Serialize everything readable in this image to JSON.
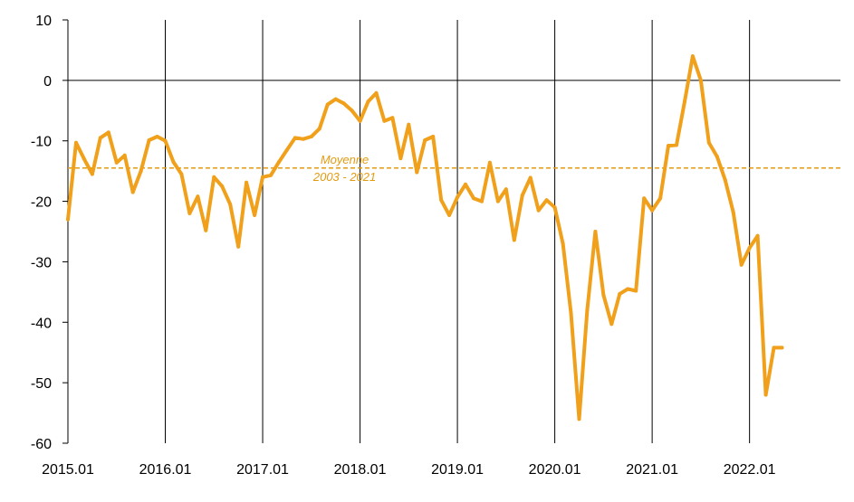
{
  "chart_data": {
    "type": "line",
    "title": "",
    "xlabel": "",
    "ylabel": "",
    "xlim": [
      "2015.01",
      "2022.12"
    ],
    "ylim": [
      -60,
      10
    ],
    "y_ticks": [
      10,
      0,
      -10,
      -20,
      -30,
      -40,
      -50,
      -60
    ],
    "x_tick_labels": [
      "2015.01",
      "2016.01",
      "2017.01",
      "2018.01",
      "2019.01",
      "2020.01",
      "2021.01",
      "2022.01"
    ],
    "grid": "vertical lines at each year",
    "series_color": "#f0a01a",
    "average": {
      "value": -14.5,
      "label_line1": "Moyenne",
      "label_line2": "2003 - 2021",
      "color": "#e39b12",
      "style": "dashed"
    },
    "series": [
      {
        "x": [
          "2015.01",
          "2015.02",
          "2015.03",
          "2015.04",
          "2015.05",
          "2015.06",
          "2015.07",
          "2015.08",
          "2015.09",
          "2015.10",
          "2015.11",
          "2015.12",
          "2016.01",
          "2016.02",
          "2016.03",
          "2016.04",
          "2016.05",
          "2016.06",
          "2016.07",
          "2016.08",
          "2016.09",
          "2016.10",
          "2016.11",
          "2016.12",
          "2017.01",
          "2017.02",
          "2017.03",
          "2017.04",
          "2017.05",
          "2017.06",
          "2017.07",
          "2017.08",
          "2017.09",
          "2017.10",
          "2017.11",
          "2017.12",
          "2018.01",
          "2018.02",
          "2018.03",
          "2018.04",
          "2018.05",
          "2018.06",
          "2018.07",
          "2018.08",
          "2018.09",
          "2018.10",
          "2018.11",
          "2018.12",
          "2019.01",
          "2019.02",
          "2019.03",
          "2019.04",
          "2019.05",
          "2019.06",
          "2019.07",
          "2019.08",
          "2019.09",
          "2019.10",
          "2019.11",
          "2019.12",
          "2020.01",
          "2020.02",
          "2020.03",
          "2020.04",
          "2020.05",
          "2020.06",
          "2020.07",
          "2020.08",
          "2020.09",
          "2020.10",
          "2020.11",
          "2020.12",
          "2021.01",
          "2021.02",
          "2021.03",
          "2021.04",
          "2021.05",
          "2021.06",
          "2021.07",
          "2021.08",
          "2021.09",
          "2021.10",
          "2021.11",
          "2021.12",
          "2022.01",
          "2022.02",
          "2022.03",
          "2022.04",
          "2022.05"
        ],
        "values": [
          -23,
          -10.3,
          -13,
          -15.5,
          -9.5,
          -8.6,
          -13.6,
          -12.4,
          -18.5,
          -15,
          -9.9,
          -9.3,
          -10,
          -13.5,
          -15.5,
          -22,
          -19.2,
          -24.8,
          -16,
          -17.5,
          -20.5,
          -27.5,
          -16.9,
          -22.3,
          -16,
          -15.7,
          -13.5,
          -11.5,
          -9.5,
          -9.7,
          -9.3,
          -8,
          -4,
          -3.1,
          -3.8,
          -5,
          -6.7,
          -3.5,
          -2.1,
          -6.7,
          -6.2,
          -12.9,
          -7.3,
          -15.2,
          -9.9,
          -9.3,
          -19.8,
          -22.3,
          -19.3,
          -17.2,
          -19.5,
          -20,
          -13.6,
          -20,
          -18,
          -26.4,
          -19,
          -16.1,
          -21.5,
          -19.8,
          -21,
          -27,
          -38.5,
          -56,
          -38,
          -25,
          -35.5,
          -40.3,
          -35.3,
          -34.5,
          -34.8,
          -19.5,
          -21.5,
          -19.5,
          -10.8,
          -10.7,
          -3.5,
          4,
          0,
          -10.3,
          -12.6,
          -16.5,
          -21.8,
          -30.5,
          -27.7,
          -25.7,
          -52,
          -44.2,
          -44.2
        ]
      }
    ]
  }
}
